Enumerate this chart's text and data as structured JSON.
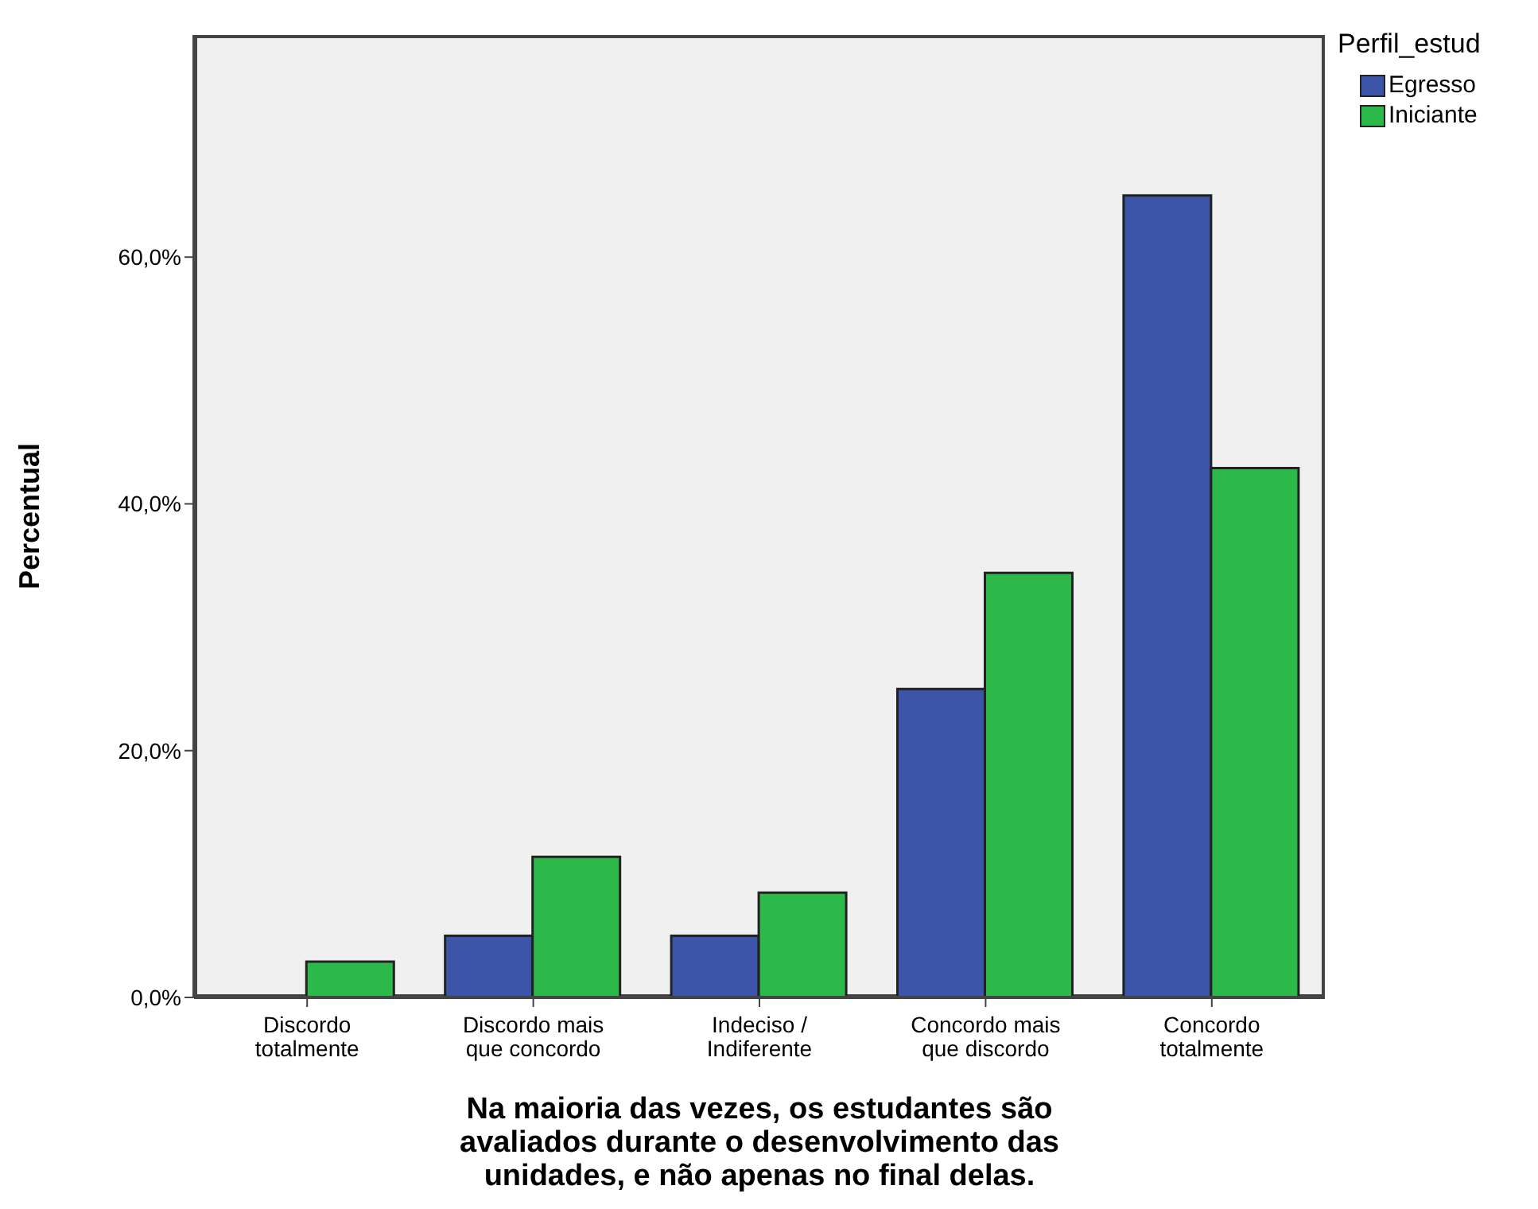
{
  "chart_data": {
    "type": "bar",
    "xlabel": "Na maioria das vezes, os estudantes são\navaliados durante o desenvolvimento das\nunidades, e não apenas no final delas.",
    "ylabel": "Percentual",
    "legend_title": "Perfil_estud",
    "categories": [
      "Discordo\ntotalmente",
      "Discordo mais\nque concordo",
      "Indeciso /\nIndiferente",
      "Concordo mais\nque discordo",
      "Concordo\ntotalmente"
    ],
    "series": [
      {
        "name": "Egresso",
        "color": "#3d55a8",
        "values": [
          0,
          5.0,
          5.0,
          25.0,
          65.0
        ]
      },
      {
        "name": "Iniciante",
        "color": "#2db84a",
        "values": [
          2.9,
          11.4,
          8.5,
          34.4,
          42.9
        ]
      }
    ],
    "ylim": [
      0,
      78
    ],
    "yticks": [
      {
        "value": 0,
        "label": "0,0%"
      },
      {
        "value": 20,
        "label": "20,0%"
      },
      {
        "value": 40,
        "label": "40,0%"
      },
      {
        "value": 60,
        "label": "60,0%"
      }
    ],
    "grid": false,
    "legend": "top right"
  }
}
